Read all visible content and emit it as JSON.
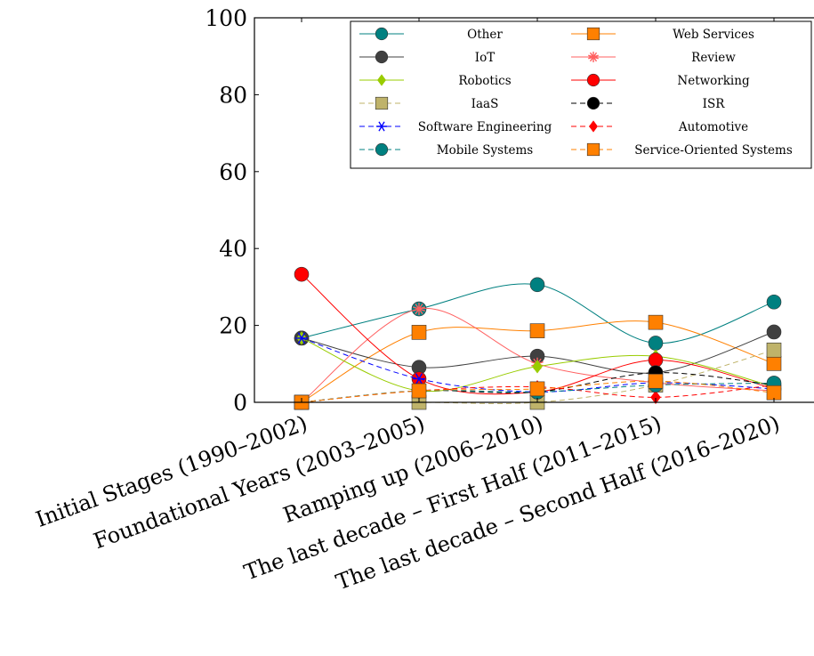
{
  "chart_data": {
    "type": "line",
    "title": "",
    "xlabel": "",
    "ylabel": "",
    "ylim": [
      0,
      100
    ],
    "yticks": [
      0,
      20,
      40,
      60,
      80,
      100
    ],
    "grid": false,
    "legend_position": "top-right",
    "categories": [
      "Initial Stages (1990–2002)",
      "Foundational Years (2003–2005)",
      "Ramping up (2006–2010)",
      "The last decade – First Half (2011–2015)",
      "The last decade – Second Half (2016–2020)"
    ],
    "series": [
      {
        "name": "Other",
        "values": [
          16.7,
          24.3,
          30.6,
          15.4,
          26.1
        ],
        "color": "#008080",
        "dash": "solid",
        "marker": "circle"
      },
      {
        "name": "Web Services",
        "values": [
          0,
          18.2,
          18.6,
          20.8,
          10.1
        ],
        "color": "#ff8000",
        "dash": "solid",
        "marker": "square"
      },
      {
        "name": "IoT",
        "values": [
          16.7,
          9.1,
          12.0,
          7.7,
          18.3
        ],
        "color": "#404040",
        "dash": "solid",
        "marker": "circle"
      },
      {
        "name": "Review",
        "values": [
          0,
          24.3,
          10.0,
          5.1,
          3.0
        ],
        "color": "#ff6060",
        "dash": "solid",
        "marker": "star"
      },
      {
        "name": "Robotics",
        "values": [
          16.7,
          3.0,
          9.3,
          12.0,
          4.0
        ],
        "color": "#99cc00",
        "dash": "solid",
        "marker": "diamond"
      },
      {
        "name": "Networking",
        "values": [
          33.3,
          6.1,
          2.7,
          11.0,
          3.5
        ],
        "color": "#ff0000",
        "dash": "solid",
        "marker": "circle"
      },
      {
        "name": "IaaS",
        "values": [
          0,
          0,
          0,
          4.5,
          13.6
        ],
        "color": "#bfb36a",
        "dash": "dashed",
        "marker": "square"
      },
      {
        "name": "ISR",
        "values": [
          0,
          3.0,
          2.7,
          7.7,
          4.5
        ],
        "color": "#000000",
        "dash": "dashed",
        "marker": "circle"
      },
      {
        "name": "Software Engineering",
        "values": [
          16.7,
          6.1,
          2.7,
          5.1,
          3.5
        ],
        "color": "#0000ff",
        "dash": "dashed",
        "marker": "asterisk"
      },
      {
        "name": "Automotive",
        "values": [
          0,
          3.0,
          4.0,
          1.3,
          4.5
        ],
        "color": "#ff0000",
        "dash": "dashed",
        "marker": "diamond"
      },
      {
        "name": "Mobile Systems",
        "values": [
          0,
          3.0,
          2.7,
          4.5,
          5.0
        ],
        "color": "#008080",
        "dash": "dashed",
        "marker": "circle"
      },
      {
        "name": "Service-Oriented Systems",
        "values": [
          0,
          3.0,
          3.5,
          5.5,
          2.5
        ],
        "color": "#ff8000",
        "dash": "dashed",
        "marker": "square"
      }
    ]
  }
}
